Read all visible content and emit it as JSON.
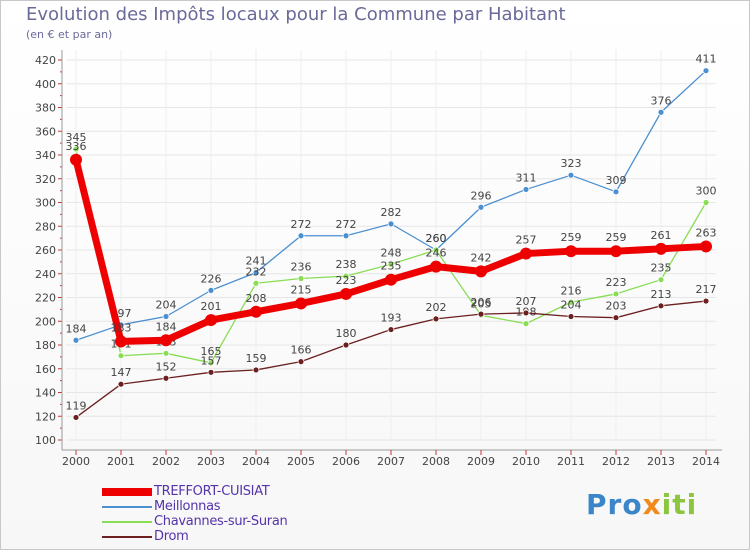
{
  "title": "Evolution des Impôts locaux pour la Commune par Habitant",
  "subtitle": "(en € et par an)",
  "logo": {
    "part1": "Pro",
    "part2": "x",
    "part3": "iti"
  },
  "chart_data": {
    "type": "line",
    "title": "Evolution des Impôts locaux pour la Commune par Habitant",
    "ylabel": "(en € et par an)",
    "xlabel": "",
    "ylim": [
      100,
      420
    ],
    "ytick_step": 20,
    "x": [
      "2000",
      "2001",
      "2002",
      "2003",
      "2004",
      "2005",
      "2006",
      "2007",
      "2008",
      "2009",
      "2010",
      "2011",
      "2012",
      "2013",
      "2014"
    ],
    "series": [
      {
        "name": "TREFFORT-CUISIAT",
        "color": "#ee0000",
        "thick": true,
        "values": [
          336,
          183,
          184,
          201,
          208,
          215,
          223,
          235,
          246,
          242,
          257,
          259,
          259,
          261,
          263
        ]
      },
      {
        "name": "Meillonnas",
        "color": "#4a8fd0",
        "thick": false,
        "values": [
          184,
          197,
          204,
          226,
          241,
          272,
          272,
          282,
          260,
          296,
          311,
          323,
          309,
          376,
          411
        ]
      },
      {
        "name": "Chavannes-sur-Suran",
        "color": "#88dd55",
        "thick": false,
        "values": [
          345,
          171,
          173,
          165,
          232,
          236,
          238,
          248,
          260,
          205,
          198,
          216,
          223,
          235,
          300
        ]
      },
      {
        "name": "Drom",
        "color": "#6b1f1f",
        "thick": false,
        "values": [
          119,
          147,
          152,
          157,
          159,
          166,
          180,
          193,
          202,
          206,
          207,
          204,
          203,
          213,
          217
        ]
      }
    ]
  }
}
